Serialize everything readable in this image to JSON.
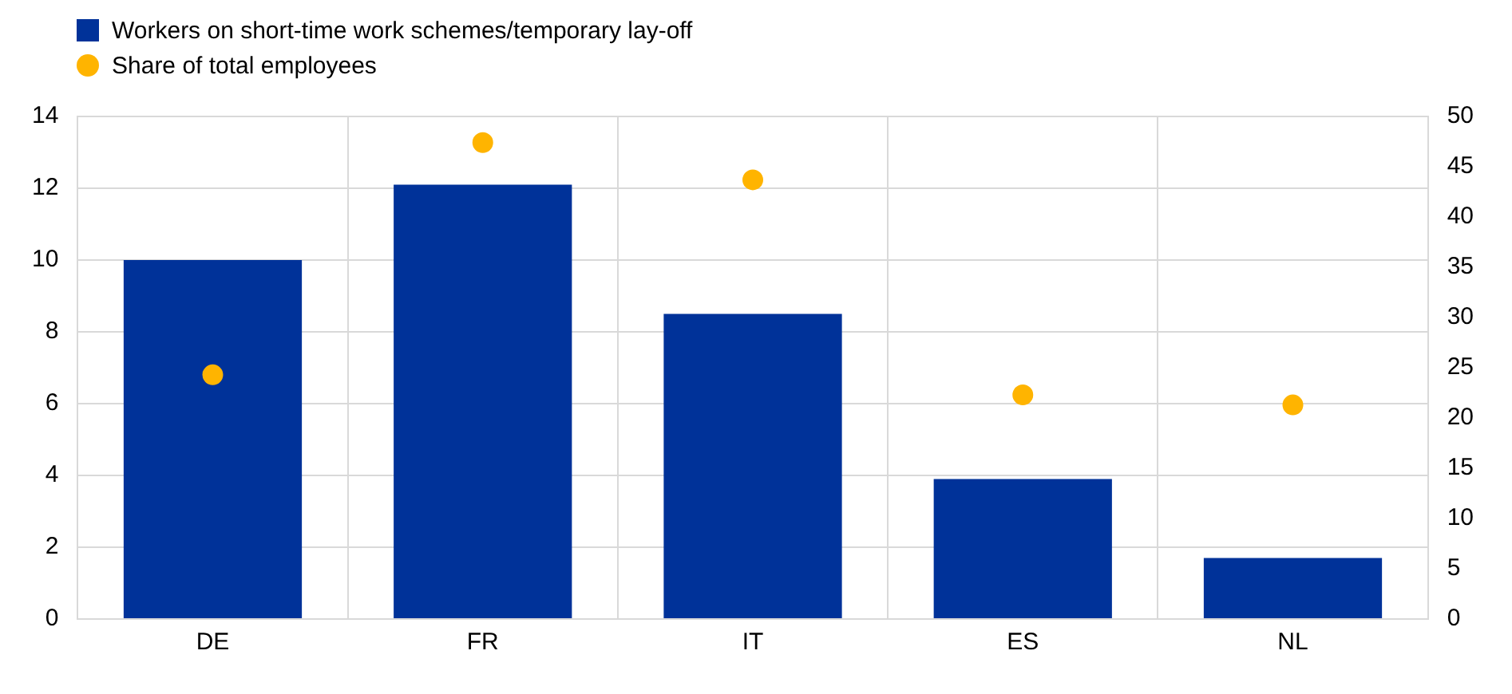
{
  "chart_data": {
    "type": "bar",
    "categories": [
      "DE",
      "FR",
      "IT",
      "ES",
      "NL"
    ],
    "series": [
      {
        "name": "Workers on short-time work schemes/temporary lay-off",
        "color": "#003299",
        "values": [
          10,
          12.1,
          8.5,
          3.9,
          1.7
        ]
      },
      {
        "name": "Share of total employees",
        "type": "scatter",
        "axis": "y2",
        "color": "#ffb400",
        "values": [
          24.3,
          47.4,
          43.7,
          22.3,
          21.3
        ]
      }
    ],
    "ylim": [
      0,
      14
    ],
    "yticks": [
      0,
      2,
      4,
      6,
      8,
      10,
      12,
      14
    ],
    "y2lim": [
      0,
      50
    ],
    "y2ticks": [
      0,
      5,
      10,
      15,
      20,
      25,
      30,
      35,
      40,
      45,
      50
    ],
    "grid": true,
    "legend": "top left",
    "marker": "circle"
  }
}
